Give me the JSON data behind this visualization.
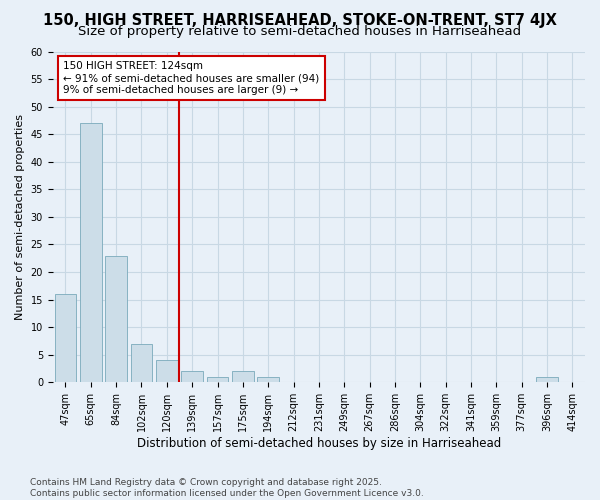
{
  "title": "150, HIGH STREET, HARRISEAHEAD, STOKE-ON-TRENT, ST7 4JX",
  "subtitle": "Size of property relative to semi-detached houses in Harriseahead",
  "xlabel": "Distribution of semi-detached houses by size in Harriseahead",
  "ylabel": "Number of semi-detached properties",
  "categories": [
    "47sqm",
    "65sqm",
    "84sqm",
    "102sqm",
    "120sqm",
    "139sqm",
    "157sqm",
    "175sqm",
    "194sqm",
    "212sqm",
    "231sqm",
    "249sqm",
    "267sqm",
    "286sqm",
    "304sqm",
    "322sqm",
    "341sqm",
    "359sqm",
    "377sqm",
    "396sqm",
    "414sqm"
  ],
  "values": [
    16,
    47,
    23,
    7,
    4,
    2,
    1,
    2,
    1,
    0,
    0,
    0,
    0,
    0,
    0,
    0,
    0,
    0,
    0,
    1,
    0
  ],
  "bar_color": "#ccdde8",
  "bar_edge_color": "#7aaabb",
  "grid_color": "#c8d8e4",
  "background_color": "#e8f0f8",
  "annotation_line1": "150 HIGH STREET: 124sqm",
  "annotation_line2": "← 91% of semi-detached houses are smaller (94)",
  "annotation_line3": "9% of semi-detached houses are larger (9) →",
  "annotation_box_facecolor": "#ffffff",
  "annotation_box_edgecolor": "#cc0000",
  "vline_color": "#cc0000",
  "vline_index": 4,
  "ylim": [
    0,
    60
  ],
  "yticks": [
    0,
    5,
    10,
    15,
    20,
    25,
    30,
    35,
    40,
    45,
    50,
    55,
    60
  ],
  "footer_line1": "Contains HM Land Registry data © Crown copyright and database right 2025.",
  "footer_line2": "Contains public sector information licensed under the Open Government Licence v3.0.",
  "title_fontsize": 10.5,
  "subtitle_fontsize": 9.5,
  "xlabel_fontsize": 8.5,
  "ylabel_fontsize": 8,
  "tick_fontsize": 7,
  "footer_fontsize": 6.5,
  "annotation_fontsize": 7.5
}
